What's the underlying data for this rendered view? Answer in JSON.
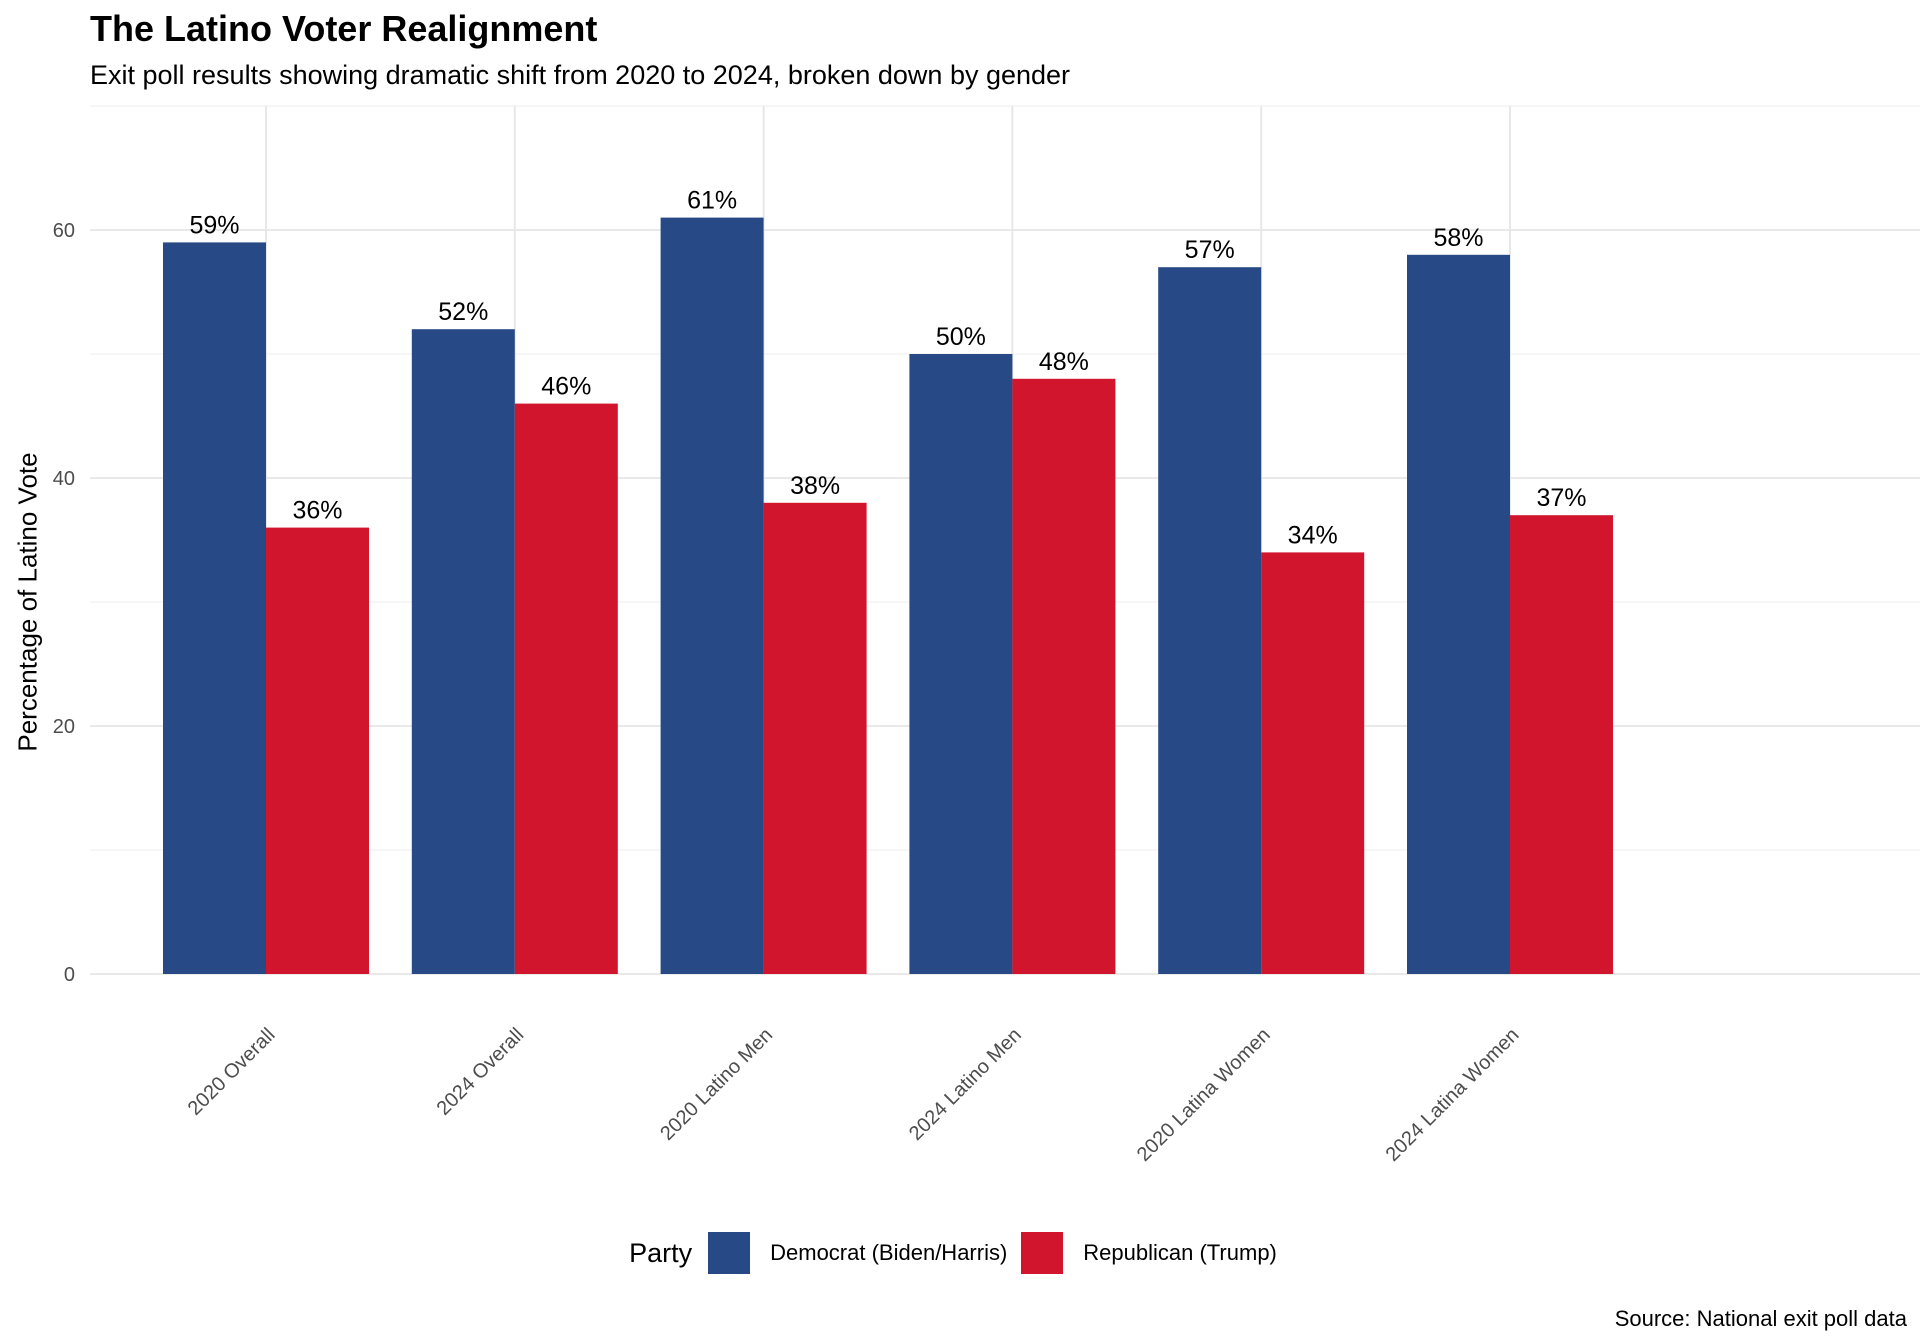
{
  "chart_data": {
    "type": "bar",
    "title": "The Latino Voter Realignment",
    "subtitle": "Exit poll results showing dramatic shift from 2020 to 2024, broken down by gender",
    "xlabel": "",
    "ylabel": "Percentage of Latino Vote",
    "ylim": [
      0,
      70
    ],
    "yticks": [
      "0",
      "20",
      "40",
      "60"
    ],
    "categories": [
      "2020 Overall",
      "2024 Overall",
      "2020 Latino Men",
      "2024 Latino Men",
      "2020 Latina Women",
      "2024 Latina Women"
    ],
    "series": [
      {
        "name": "Democrat (Biden/Harris)",
        "color": "#274a87",
        "values": [
          59,
          52,
          61,
          50,
          57,
          58
        ],
        "labels": [
          "59%",
          "52%",
          "61%",
          "50%",
          "57%",
          "58%"
        ]
      },
      {
        "name": "Republican (Trump)",
        "color": "#d0152c",
        "values": [
          36,
          46,
          38,
          48,
          34,
          37
        ],
        "labels": [
          "36%",
          "46%",
          "38%",
          "48%",
          "34%",
          "37%"
        ]
      }
    ],
    "grid": true,
    "legend": {
      "title": "Party",
      "position": "bottom"
    },
    "caption": "Source: National exit poll data"
  }
}
